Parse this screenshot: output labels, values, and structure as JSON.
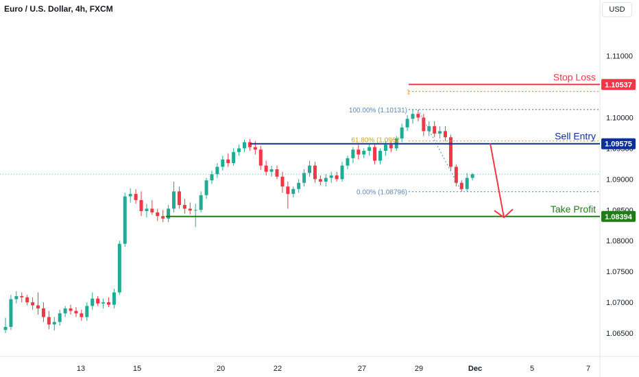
{
  "header": {
    "title": "Euro / U.S. Dollar, 4h, FXCM",
    "currency": "USD"
  },
  "colors": {
    "up": "#22ab94",
    "down": "#f23645",
    "stop": "#f23645",
    "entry": "#0d2f9c",
    "profit": "#1e7d14",
    "fib_blue": "#5b88b6",
    "fib_gold": "#d4a017",
    "arrow": "#f23645"
  },
  "chart_data": {
    "type": "candlestick",
    "title": "Euro / U.S. Dollar, 4h, FXCM",
    "ylim": [
      1.0612,
      1.1191
    ],
    "y_ticks": [
      "1.11000",
      "1.10000",
      "1.09500",
      "1.09000",
      "1.08500",
      "1.08000",
      "1.07500",
      "1.07000",
      "1.06500"
    ],
    "x_ticks": [
      "13",
      "15",
      "20",
      "22",
      "27",
      "29",
      "Dec",
      "5",
      "7"
    ],
    "candles": [
      [
        1.0655,
        1.0675,
        1.065,
        1.066
      ],
      [
        1.066,
        1.0712,
        1.0655,
        1.0705
      ],
      [
        1.0705,
        1.0718,
        1.0698,
        1.071
      ],
      [
        1.071,
        1.0716,
        1.07,
        1.0708
      ],
      [
        1.0708,
        1.0712,
        1.0695,
        1.07
      ],
      [
        1.07,
        1.0708,
        1.0688,
        1.0695
      ],
      [
        1.0695,
        1.0716,
        1.068,
        1.069
      ],
      [
        1.069,
        1.07,
        1.0668,
        1.0676
      ],
      [
        1.0676,
        1.0686,
        1.0656,
        1.0664
      ],
      [
        1.0664,
        1.0676,
        1.0654,
        1.0668
      ],
      [
        1.0668,
        1.0688,
        1.0662,
        1.0682
      ],
      [
        1.0682,
        1.0694,
        1.0676,
        1.069
      ],
      [
        1.069,
        1.0696,
        1.068,
        1.0686
      ],
      [
        1.0686,
        1.0692,
        1.0676,
        1.0682
      ],
      [
        1.0682,
        1.0688,
        1.067,
        1.0676
      ],
      [
        1.0676,
        1.07,
        1.067,
        1.0694
      ],
      [
        1.0694,
        1.0716,
        1.0688,
        1.0706
      ],
      [
        1.0706,
        1.071,
        1.0694,
        1.0698
      ],
      [
        1.0698,
        1.0706,
        1.069,
        1.07
      ],
      [
        1.07,
        1.0708,
        1.0692,
        1.0696
      ],
      [
        1.0696,
        1.0722,
        1.069,
        1.0716
      ],
      [
        1.0716,
        1.08,
        1.0712,
        1.0795
      ],
      [
        1.0795,
        1.0878,
        1.079,
        1.0872
      ],
      [
        1.0872,
        1.0885,
        1.0862,
        1.0876
      ],
      [
        1.0876,
        1.0884,
        1.086,
        1.0866
      ],
      [
        1.0866,
        1.088,
        1.084,
        1.0848
      ],
      [
        1.0848,
        1.086,
        1.0838,
        1.0852
      ],
      [
        1.0852,
        1.0866,
        1.0842,
        1.0846
      ],
      [
        1.0846,
        1.0852,
        1.0832,
        1.084
      ],
      [
        1.084,
        1.085,
        1.083,
        1.0836
      ],
      [
        1.0836,
        1.0858,
        1.083,
        1.0852
      ],
      [
        1.0852,
        1.0896,
        1.0846,
        1.088
      ],
      [
        1.088,
        1.0888,
        1.0852,
        1.0858
      ],
      [
        1.0858,
        1.0868,
        1.0844,
        1.0852
      ],
      [
        1.0852,
        1.0862,
        1.0843,
        1.0849
      ],
      [
        1.0849,
        1.086,
        1.0822,
        1.085
      ],
      [
        1.085,
        1.088,
        1.0846,
        1.0874
      ],
      [
        1.0874,
        1.0902,
        1.0868,
        1.0898
      ],
      [
        1.0898,
        1.0914,
        1.0892,
        1.0908
      ],
      [
        1.0908,
        1.0926,
        1.0902,
        1.092
      ],
      [
        1.092,
        1.0938,
        1.0914,
        1.0932
      ],
      [
        1.0932,
        1.0942,
        1.092,
        1.0926
      ],
      [
        1.0926,
        1.095,
        1.0922,
        1.0944
      ],
      [
        1.0944,
        1.0956,
        1.0938,
        1.095
      ],
      [
        1.095,
        1.0964,
        1.0944,
        1.096
      ],
      [
        1.096,
        1.0965,
        1.0946,
        1.0952
      ],
      [
        1.0952,
        1.0962,
        1.094,
        1.0948
      ],
      [
        1.0948,
        1.0954,
        1.0915,
        1.0922
      ],
      [
        1.0922,
        1.093,
        1.0906,
        1.0912
      ],
      [
        1.0912,
        1.0922,
        1.0904,
        1.0916
      ],
      [
        1.0916,
        1.0922,
        1.09,
        1.0904
      ],
      [
        1.0904,
        1.0912,
        1.0878,
        1.0888
      ],
      [
        1.0888,
        1.0896,
        1.0852,
        1.0876
      ],
      [
        1.0876,
        1.0888,
        1.087,
        1.0884
      ],
      [
        1.0884,
        1.09,
        1.0878,
        1.0894
      ],
      [
        1.0894,
        1.0916,
        1.0888,
        1.091
      ],
      [
        1.091,
        1.093,
        1.0904,
        1.0922
      ],
      [
        1.0922,
        1.0928,
        1.0894,
        1.09
      ],
      [
        1.09,
        1.0906,
        1.089,
        1.0896
      ],
      [
        1.0896,
        1.0908,
        1.0888,
        1.0902
      ],
      [
        1.0902,
        1.0912,
        1.0894,
        1.0906
      ],
      [
        1.0906,
        1.0912,
        1.0896,
        1.09
      ],
      [
        1.09,
        1.0928,
        1.0896,
        1.0922
      ],
      [
        1.0922,
        1.0938,
        1.0916,
        1.0934
      ],
      [
        1.0934,
        1.0952,
        1.0926,
        1.0948
      ],
      [
        1.0948,
        1.0956,
        1.0932,
        1.094
      ],
      [
        1.094,
        1.095,
        1.0934,
        1.0946
      ],
      [
        1.0946,
        1.0958,
        1.0938,
        1.0952
      ],
      [
        1.0952,
        1.0958,
        1.0924,
        1.093
      ],
      [
        1.093,
        1.095,
        1.0924,
        1.0946
      ],
      [
        1.0946,
        1.0962,
        1.0938,
        1.0956
      ],
      [
        1.0956,
        1.0962,
        1.0944,
        1.095
      ],
      [
        1.095,
        1.097,
        1.0946,
        1.0966
      ],
      [
        1.0966,
        1.099,
        1.096,
        1.0984
      ],
      [
        1.0984,
        1.1004,
        1.0978,
        1.0998
      ],
      [
        1.0998,
        1.1013,
        1.099,
        1.1006
      ],
      [
        1.1006,
        1.1012,
        1.0994,
        1.1
      ],
      [
        1.1,
        1.1006,
        1.097,
        1.0978
      ],
      [
        1.0978,
        1.0994,
        1.097,
        1.0986
      ],
      [
        1.0986,
        1.0994,
        1.0968,
        1.0974
      ],
      [
        1.0974,
        1.0986,
        1.0966,
        1.0978
      ],
      [
        1.0978,
        1.0986,
        1.0962,
        1.0968
      ],
      [
        1.0968,
        1.0972,
        1.0914,
        1.092
      ],
      [
        1.092,
        1.0924,
        1.0888,
        1.0894
      ],
      [
        1.0894,
        1.0898,
        1.088,
        1.0884
      ],
      [
        1.0884,
        1.091,
        1.088,
        1.0902
      ],
      [
        1.0902,
        1.091,
        1.0898,
        1.0908
      ]
    ],
    "levels": {
      "stop_loss": 1.10537,
      "fib_1": 1.10425,
      "fib_100": 1.10131,
      "entry": 1.09575,
      "fib_618": 1.0962,
      "last_price": 1.0908,
      "fib_0": 1.08796,
      "take_profit": 1.08394
    },
    "annotations": {
      "stop_loss": "Stop Loss",
      "sell_entry": "Sell Entry",
      "take_profit": "Take Profit",
      "fib_100": "100.00% (1.10131)",
      "fib_618": "61.80% (1.0962",
      "fib_0": "0.00% (1.08796)",
      "fib_1": "1"
    },
    "badges": {
      "stop_loss": "1.10537",
      "entry": "1.09575",
      "take_profit": "1.08394"
    },
    "projection": {
      "from": 1.0958,
      "to": 1.084
    }
  }
}
